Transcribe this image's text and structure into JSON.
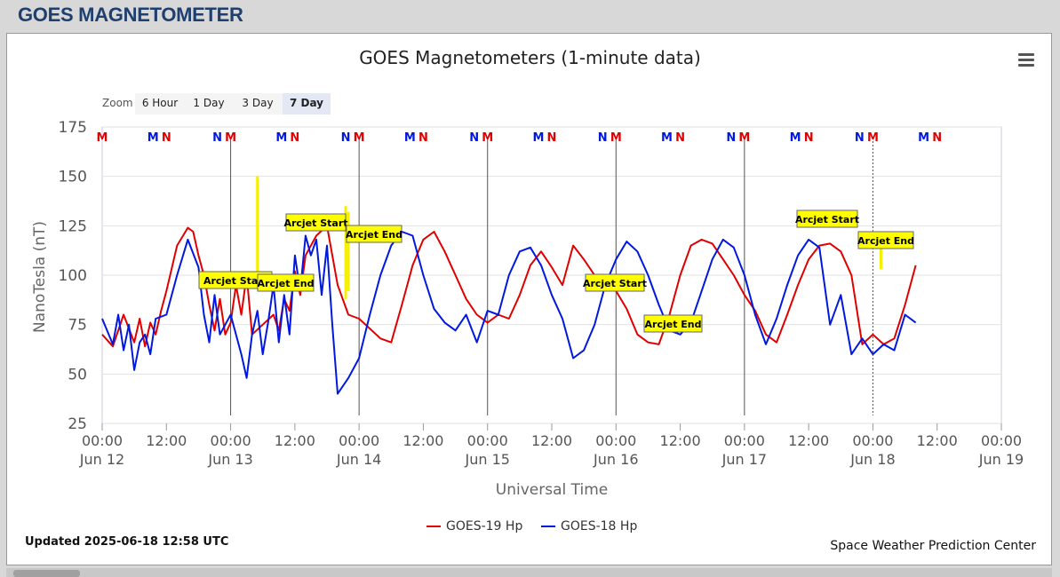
{
  "header": {
    "title": "GOES MAGNETOMETER"
  },
  "zoom": {
    "label": "Zoom",
    "buttons": [
      "6 Hour",
      "1 Day",
      "3 Day",
      "7 Day"
    ],
    "active": "7 Day"
  },
  "footer": {
    "updated": "Updated 2025-06-18 12:58 UTC",
    "credit": "Space Weather Prediction Center"
  },
  "colors": {
    "goes19": "#e00000",
    "goes18": "#0018e0",
    "arcjet": "#ffff00"
  },
  "chart_data": {
    "type": "line",
    "title": "GOES Magnetometers (1-minute data)",
    "xlabel": "Universal Time",
    "ylabel": "NanoTesla (nT)",
    "ylim": [
      25,
      175
    ],
    "yticks": [
      25,
      50,
      75,
      100,
      125,
      150,
      175
    ],
    "x_unit": "hours since 00:00 Jun 12 UTC",
    "xlim": [
      0,
      168
    ],
    "xticks": [
      {
        "time": "00:00",
        "date": "Jun 12"
      },
      {
        "time": "12:00",
        "date": ""
      },
      {
        "time": "00:00",
        "date": "Jun 13"
      },
      {
        "time": "12:00",
        "date": ""
      },
      {
        "time": "00:00",
        "date": "Jun 14"
      },
      {
        "time": "12:00",
        "date": ""
      },
      {
        "time": "00:00",
        "date": "Jun 15"
      },
      {
        "time": "12:00",
        "date": ""
      },
      {
        "time": "00:00",
        "date": "Jun 16"
      },
      {
        "time": "12:00",
        "date": ""
      },
      {
        "time": "00:00",
        "date": "Jun 17"
      },
      {
        "time": "12:00",
        "date": ""
      },
      {
        "time": "00:00",
        "date": "Jun 18"
      },
      {
        "time": "12:00",
        "date": ""
      },
      {
        "time": "00:00",
        "date": "Jun 19"
      }
    ],
    "grid": true,
    "legend_position": "bottom-center",
    "series": [
      {
        "name": "GOES-19 Hp",
        "color": "#e00000",
        "x": [
          0,
          2,
          4,
          6,
          7,
          8,
          9,
          10,
          11,
          12,
          14,
          16,
          17,
          18,
          19,
          20,
          21,
          22,
          23,
          24,
          25,
          26,
          27,
          28,
          30,
          32,
          33,
          34,
          35,
          36,
          37,
          38,
          40,
          42,
          44,
          46,
          48,
          50,
          52,
          54,
          56,
          58,
          60,
          62,
          64,
          66,
          68,
          70,
          72,
          74,
          76,
          78,
          80,
          82,
          84,
          86,
          88,
          90,
          92,
          94,
          96,
          98,
          100,
          102,
          104,
          106,
          108,
          110,
          112,
          114,
          116,
          118,
          120,
          122,
          124,
          126,
          128,
          130,
          132,
          134,
          136,
          138,
          140,
          142,
          144,
          146,
          148,
          150,
          152
        ],
        "y": [
          70,
          64,
          80,
          66,
          78,
          64,
          76,
          70,
          82,
          92,
          115,
          124,
          122,
          110,
          100,
          85,
          72,
          88,
          70,
          76,
          95,
          80,
          100,
          70,
          75,
          80,
          72,
          88,
          82,
          102,
          90,
          110,
          120,
          125,
          95,
          80,
          78,
          73,
          68,
          66,
          85,
          105,
          118,
          122,
          112,
          100,
          88,
          80,
          76,
          80,
          78,
          90,
          105,
          112,
          104,
          95,
          115,
          108,
          100,
          96,
          92,
          83,
          70,
          66,
          65,
          80,
          100,
          115,
          118,
          116,
          108,
          100,
          90,
          82,
          70,
          66,
          80,
          95,
          108,
          115,
          116,
          112,
          100,
          65,
          70,
          65,
          68,
          85,
          105
        ]
      },
      {
        "name": "GOES-18 Hp",
        "color": "#0018e0",
        "x": [
          0,
          2,
          3,
          4,
          5,
          6,
          7,
          8,
          9,
          10,
          12,
          14,
          16,
          18,
          19,
          20,
          21,
          22,
          24,
          26,
          27,
          28,
          29,
          30,
          31,
          32,
          33,
          34,
          35,
          36,
          37,
          38,
          39,
          40,
          41,
          42,
          43,
          44,
          46,
          48,
          50,
          52,
          54,
          56,
          58,
          60,
          62,
          64,
          66,
          68,
          70,
          72,
          74,
          76,
          78,
          80,
          82,
          84,
          86,
          88,
          90,
          92,
          94,
          96,
          98,
          100,
          102,
          104,
          106,
          108,
          110,
          112,
          114,
          116,
          118,
          120,
          122,
          124,
          126,
          128,
          130,
          132,
          134,
          136,
          138,
          140,
          142,
          144,
          146,
          148,
          150,
          152
        ],
        "y": [
          78,
          65,
          80,
          62,
          75,
          52,
          66,
          70,
          60,
          78,
          80,
          100,
          118,
          104,
          80,
          66,
          90,
          70,
          80,
          60,
          48,
          70,
          82,
          60,
          76,
          95,
          66,
          90,
          70,
          110,
          92,
          120,
          110,
          118,
          90,
          115,
          75,
          40,
          48,
          58,
          80,
          100,
          115,
          122,
          120,
          100,
          83,
          76,
          72,
          80,
          66,
          82,
          80,
          100,
          112,
          114,
          105,
          90,
          78,
          58,
          62,
          75,
          95,
          108,
          117,
          112,
          100,
          85,
          72,
          70,
          76,
          92,
          108,
          118,
          114,
          100,
          80,
          65,
          78,
          95,
          110,
          118,
          114,
          75,
          90,
          60,
          68,
          60,
          65,
          62,
          80,
          76
        ]
      }
    ],
    "events": [
      {
        "label": "Arcjet Start",
        "at": "Jun 13 ~05:00"
      },
      {
        "label": "Arcjet End",
        "at": "Jun 13 ~06:00"
      },
      {
        "label": "Arcjet Start",
        "at": "Jun 13 ~21:00"
      },
      {
        "label": "Arcjet End",
        "at": "Jun 13 ~23:00"
      },
      {
        "label": "Arcjet Start",
        "at": "Jun 16 ~02:00"
      },
      {
        "label": "Arcjet End",
        "at": "Jun 16 ~04:00"
      },
      {
        "label": "Arcjet Start",
        "at": "Jun 17 ~22:00"
      },
      {
        "label": "Arcjet End",
        "at": "Jun 17 ~23:00"
      }
    ],
    "markers": [
      {
        "label": "M",
        "color": "#e00000",
        "x": 0
      },
      {
        "label": "M",
        "color": "#0018e0",
        "x": 9.5
      },
      {
        "label": "N",
        "color": "#e00000",
        "x": 12
      },
      {
        "label": "N",
        "color": "#0018e0",
        "x": 21.5
      },
      {
        "label": "M",
        "color": "#e00000",
        "x": 24
      },
      {
        "label": "M",
        "color": "#0018e0",
        "x": 33.5
      },
      {
        "label": "N",
        "color": "#e00000",
        "x": 36
      },
      {
        "label": "N",
        "color": "#0018e0",
        "x": 45.5
      },
      {
        "label": "M",
        "color": "#e00000",
        "x": 48
      },
      {
        "label": "M",
        "color": "#0018e0",
        "x": 57.5
      },
      {
        "label": "N",
        "color": "#e00000",
        "x": 60
      },
      {
        "label": "N",
        "color": "#0018e0",
        "x": 69.5
      },
      {
        "label": "M",
        "color": "#e00000",
        "x": 72
      },
      {
        "label": "M",
        "color": "#0018e0",
        "x": 81.5
      },
      {
        "label": "N",
        "color": "#e00000",
        "x": 84
      },
      {
        "label": "N",
        "color": "#0018e0",
        "x": 93.5
      },
      {
        "label": "M",
        "color": "#e00000",
        "x": 96
      },
      {
        "label": "M",
        "color": "#0018e0",
        "x": 105.5
      },
      {
        "label": "N",
        "color": "#e00000",
        "x": 108
      },
      {
        "label": "N",
        "color": "#0018e0",
        "x": 117.5
      },
      {
        "label": "M",
        "color": "#e00000",
        "x": 120
      },
      {
        "label": "M",
        "color": "#0018e0",
        "x": 129.5
      },
      {
        "label": "N",
        "color": "#e00000",
        "x": 132
      },
      {
        "label": "N",
        "color": "#0018e0",
        "x": 141.5
      },
      {
        "label": "M",
        "color": "#e00000",
        "x": 144
      },
      {
        "label": "M",
        "color": "#0018e0",
        "x": 153.5
      },
      {
        "label": "N",
        "color": "#e00000",
        "x": 156
      }
    ],
    "midnight_lines": [
      24,
      48,
      72,
      96,
      120,
      144
    ]
  }
}
